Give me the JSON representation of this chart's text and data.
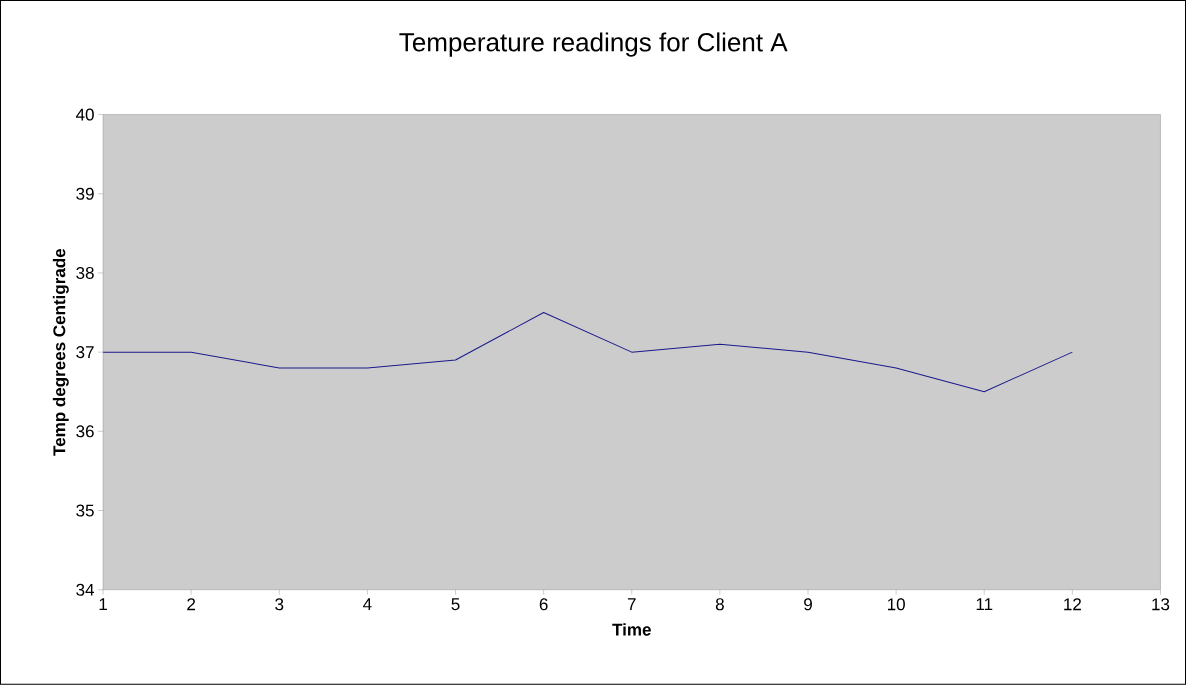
{
  "chart_data": {
    "type": "line",
    "title": "Temperature readings for Client A",
    "xlabel": "Time",
    "ylabel": "Temp degrees Centigrade",
    "x": [
      1,
      2,
      3,
      4,
      5,
      6,
      7,
      8,
      9,
      10,
      11,
      12
    ],
    "series": [
      {
        "color": "#1a1a8c",
        "values": [
          37,
          37,
          36.8,
          36.8,
          36.9,
          37.5,
          37,
          37.1,
          37,
          36.8,
          36.5,
          37
        ]
      }
    ],
    "xlim": [
      1,
      13
    ],
    "xticks": [
      1,
      2,
      3,
      4,
      5,
      6,
      7,
      8,
      9,
      10,
      11,
      12,
      13
    ],
    "ylim": [
      34,
      40
    ],
    "yticks": [
      34,
      35,
      36,
      37,
      38,
      39,
      40
    ],
    "grid": false,
    "marker": "none",
    "line_style": "solid"
  }
}
